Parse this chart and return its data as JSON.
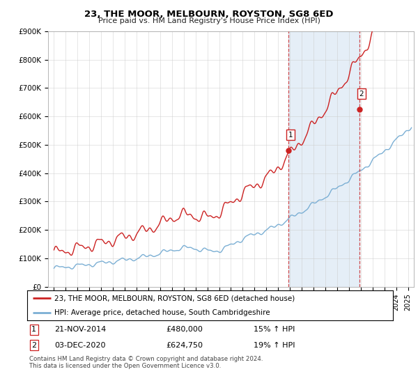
{
  "title": "23, THE MOOR, MELBOURN, ROYSTON, SG8 6ED",
  "subtitle": "Price paid vs. HM Land Registry's House Price Index (HPI)",
  "ylabel_ticks": [
    "£0",
    "£100K",
    "£200K",
    "£300K",
    "£400K",
    "£500K",
    "£600K",
    "£700K",
    "£800K",
    "£900K"
  ],
  "ytick_vals": [
    0,
    100000,
    200000,
    300000,
    400000,
    500000,
    600000,
    700000,
    800000,
    900000
  ],
  "ylim": [
    0,
    900000
  ],
  "xlim_start": 1994.5,
  "xlim_end": 2025.5,
  "hpi_color": "#7bafd4",
  "price_color": "#cc2222",
  "vline_color": "#cc2222",
  "shade_color": "#ccdff0",
  "shade_alpha": 0.5,
  "marker1_x": 2014.9,
  "marker1_y": 480000,
  "marker2_x": 2020.92,
  "marker2_y": 624750,
  "legend_line1": "23, THE MOOR, MELBOURN, ROYSTON, SG8 6ED (detached house)",
  "legend_line2": "HPI: Average price, detached house, South Cambridgeshire",
  "table_row1_num": "1",
  "table_row1_date": "21-NOV-2014",
  "table_row1_price": "£480,000",
  "table_row1_hpi": "15% ↑ HPI",
  "table_row2_num": "2",
  "table_row2_date": "03-DEC-2020",
  "table_row2_price": "£624,750",
  "table_row2_hpi": "19% ↑ HPI",
  "footer": "Contains HM Land Registry data © Crown copyright and database right 2024.\nThis data is licensed under the Open Government Licence v3.0.",
  "background_color": "#ffffff",
  "grid_color": "#cccccc"
}
